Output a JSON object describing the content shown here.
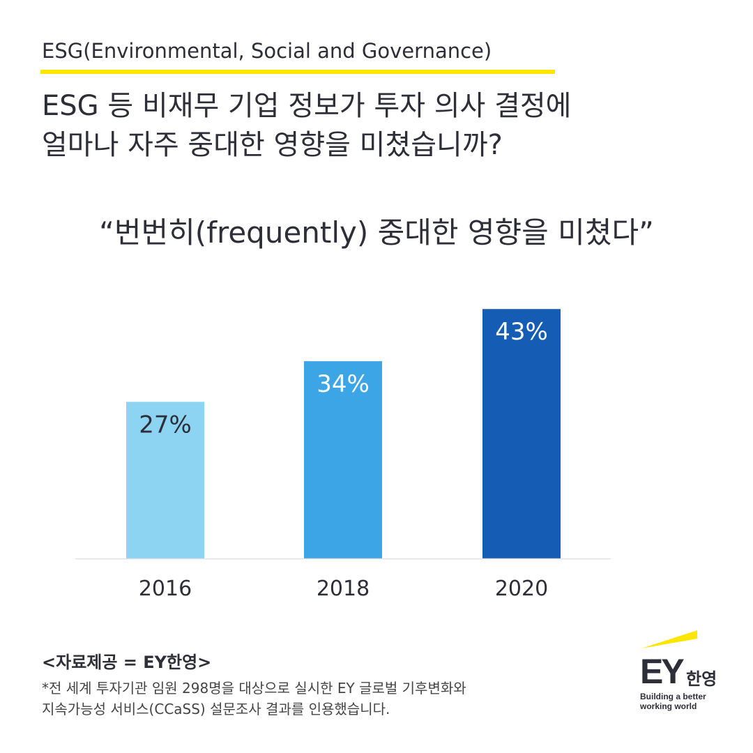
{
  "header": {
    "kicker": "ESG(Environmental, Social and Governance)",
    "title_line1": "ESG 등 비재무 기업 정보가 투자 의사 결정에",
    "title_line2": "얼마나 자주 중대한 영향을 미쳤습니까?",
    "quote": "“번번히(frequently) 중대한 영향을 미쳤다”"
  },
  "chart_data": {
    "type": "bar",
    "categories": [
      "2016",
      "2018",
      "2020"
    ],
    "values": [
      27,
      34,
      43
    ],
    "data_labels": [
      "27%",
      "34%",
      "43%"
    ],
    "colors": [
      "#8dd3f2",
      "#3ba5e6",
      "#155cb4"
    ],
    "label_colors": [
      "#2e2e38",
      "#ffffff",
      "#ffffff"
    ],
    "ylim": [
      0,
      50
    ],
    "grid": false
  },
  "footer": {
    "source": "<자료제공 = EY한영>",
    "note_line1": "*전 세계 투자기관 임원 298명을 대상으로 실시한 EY 글로벌 기후변화와",
    "note_line2": "지속가능성 서비스(CCaSS) 설문조사 결과를 인용했습니다."
  },
  "logo": {
    "brand": "EY",
    "brand_kr": "한영",
    "tagline1": "Building a better",
    "tagline2": "working world",
    "accent": "#ffe600"
  }
}
